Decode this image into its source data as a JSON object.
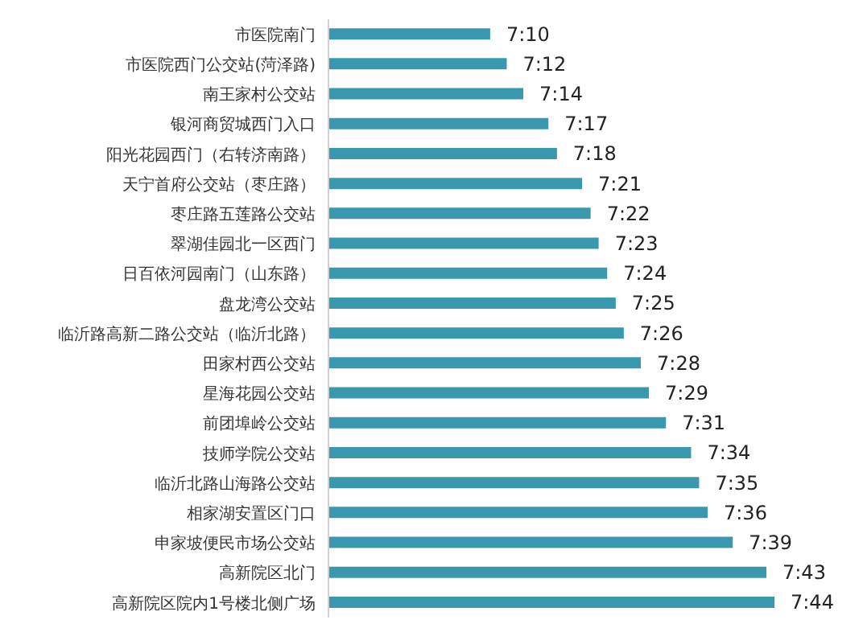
{
  "chart_data": {
    "type": "bar",
    "orientation": "horizontal",
    "xlim": [
      6.845,
      7.733
    ],
    "tick_labels": false,
    "color": "#3a98ae",
    "categories": [
      "市医院南门",
      "市医院西门公交站(菏泽路)",
      "南王家村公交站",
      "银河商贸城西门入口",
      "阳光花园西门（右转济南路）",
      "天宁首府公交站（枣庄路）",
      "枣庄路五莲路公交站",
      "翠湖佳园北一区西门",
      "日百依河园南门（山东路）",
      "盘龙湾公交站",
      "临沂路高新二路公交站（临沂北路）",
      "田家村西公交站",
      "星海花园公交站",
      "前团埠岭公交站",
      "技师学院公交站",
      "临沂北路山海路公交站",
      "相家湖安置区门口",
      "申家坡便民市场公交站",
      "高新院区北门",
      "高新院区院内1号楼北侧广场"
    ],
    "values": [
      7.167,
      7.2,
      7.233,
      7.283,
      7.3,
      7.35,
      7.367,
      7.383,
      7.4,
      7.417,
      7.433,
      7.467,
      7.483,
      7.517,
      7.567,
      7.583,
      7.6,
      7.65,
      7.717,
      7.733
    ],
    "value_labels": [
      "7:10",
      "7:12",
      "7:14",
      "7:17",
      "7:18",
      "7:21",
      "7:22",
      "7:23",
      "7:24",
      "7:25",
      "7:26",
      "7:28",
      "7:29",
      "7:31",
      "7:34",
      "7:35",
      "7:36",
      "7:39",
      "7:43",
      "7:44"
    ]
  }
}
